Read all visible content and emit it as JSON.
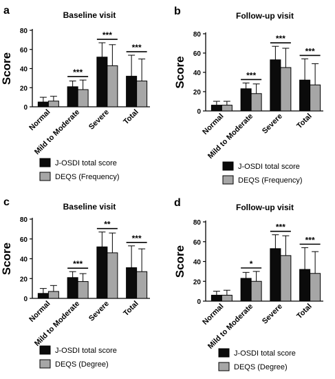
{
  "chart_data": [
    {
      "panel_letter": "a",
      "title": "Baseline visit",
      "type": "bar",
      "ylabel": "Score",
      "ylim": [
        0,
        80
      ],
      "yticks": [
        "0",
        "20",
        "40",
        "60",
        "80"
      ],
      "categories": [
        "Normal",
        "Mild to Moderate",
        "Severe",
        "Total"
      ],
      "series": [
        {
          "name": "J-OSDI total score",
          "values": [
            5,
            21,
            52,
            32
          ],
          "errors": [
            5,
            6,
            15,
            22
          ]
        },
        {
          "name": "DEQS (Frequency)",
          "values": [
            6,
            18,
            43,
            27
          ],
          "errors": [
            5,
            10,
            22,
            23
          ]
        }
      ],
      "significance": [
        "",
        "***",
        "***",
        "***"
      ],
      "legend": {
        "position": "bottom",
        "entries": [
          "J-OSDI total score",
          "DEQS (Frequency)"
        ]
      }
    },
    {
      "panel_letter": "b",
      "title": "Follow-up visit",
      "type": "bar",
      "ylabel": "Score",
      "ylim": [
        0,
        80
      ],
      "yticks": [
        "0",
        "20",
        "40",
        "60",
        "80"
      ],
      "categories": [
        "Normal",
        "Mild to Moderate",
        "Severe",
        "Total"
      ],
      "series": [
        {
          "name": "J-OSDI total score",
          "values": [
            6,
            23,
            53,
            32
          ],
          "errors": [
            4,
            6,
            14,
            22
          ]
        },
        {
          "name": "DEQS (Frequency)",
          "values": [
            6,
            18,
            45,
            27
          ],
          "errors": [
            4,
            10,
            20,
            22
          ]
        }
      ],
      "significance": [
        "",
        "***",
        "***",
        "***"
      ],
      "legend": {
        "position": "bottom",
        "entries": [
          "J-OSDI total score",
          "DEQS (Frequency)"
        ]
      }
    },
    {
      "panel_letter": "c",
      "title": "Baseline visit",
      "type": "bar",
      "ylabel": "Score",
      "ylim": [
        0,
        80
      ],
      "yticks": [
        "0",
        "20",
        "40",
        "60",
        "80"
      ],
      "categories": [
        "Normal",
        "Mild to Moderate",
        "Severe",
        "Total"
      ],
      "series": [
        {
          "name": "J-OSDI total score",
          "values": [
            5,
            21,
            52,
            31
          ],
          "errors": [
            5,
            6,
            15,
            22
          ]
        },
        {
          "name": "DEQS (Degree)",
          "values": [
            7,
            17,
            46,
            27
          ],
          "errors": [
            6,
            8,
            20,
            23
          ]
        }
      ],
      "significance": [
        "",
        "***",
        "**",
        "***"
      ],
      "legend": {
        "position": "bottom",
        "entries": [
          "J-OSDI total score",
          "DEQS (Degree)"
        ]
      }
    },
    {
      "panel_letter": "d",
      "title": "Follow-up visit",
      "type": "bar",
      "ylabel": "Score",
      "ylim": [
        0,
        80
      ],
      "yticks": [
        "0",
        "20",
        "40",
        "60",
        "80"
      ],
      "categories": [
        "Normal",
        "Mild to Moderate",
        "Severe",
        "Total"
      ],
      "series": [
        {
          "name": "J-OSDI total score",
          "values": [
            6,
            23,
            53,
            32
          ],
          "errors": [
            4,
            6,
            14,
            22
          ]
        },
        {
          "name": "DEQS (Degree)",
          "values": [
            6,
            20,
            46,
            28
          ],
          "errors": [
            5,
            10,
            20,
            22
          ]
        }
      ],
      "significance": [
        "",
        "*",
        "***",
        "***"
      ],
      "legend": {
        "position": "bottom",
        "entries": [
          "J-OSDI total score",
          "DEQS (Degree)"
        ]
      }
    }
  ],
  "colors": {
    "series_1": "#0b0b0b",
    "series_2": "#a6a6a6",
    "axis": "#000000"
  }
}
